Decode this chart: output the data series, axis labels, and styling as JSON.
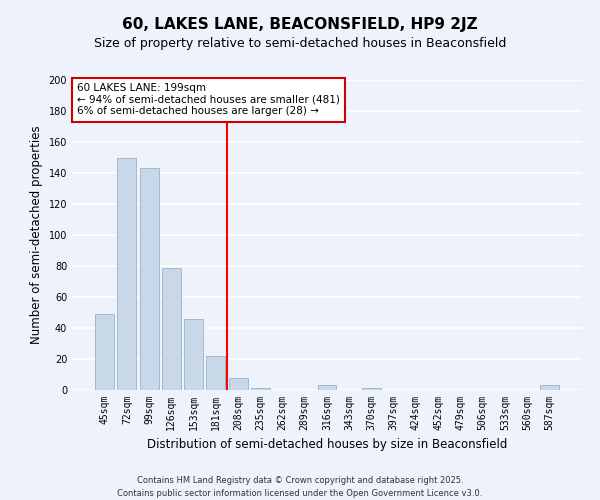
{
  "title": "60, LAKES LANE, BEACONSFIELD, HP9 2JZ",
  "subtitle": "Size of property relative to semi-detached houses in Beaconsfield",
  "xlabel": "Distribution of semi-detached houses by size in Beaconsfield",
  "ylabel": "Number of semi-detached properties",
  "bar_labels": [
    "45sqm",
    "72sqm",
    "99sqm",
    "126sqm",
    "153sqm",
    "181sqm",
    "208sqm",
    "235sqm",
    "262sqm",
    "289sqm",
    "316sqm",
    "343sqm",
    "370sqm",
    "397sqm",
    "424sqm",
    "452sqm",
    "479sqm",
    "506sqm",
    "533sqm",
    "560sqm",
    "587sqm"
  ],
  "bar_values": [
    49,
    150,
    143,
    79,
    46,
    22,
    8,
    1,
    0,
    0,
    3,
    0,
    1,
    0,
    0,
    0,
    0,
    0,
    0,
    0,
    3
  ],
  "bar_color": "#c8d8e8",
  "bar_edge_color": "#a0b8d0",
  "vline_color": "red",
  "vline_pos": 5.5,
  "ylim": [
    0,
    200
  ],
  "yticks": [
    0,
    20,
    40,
    60,
    80,
    100,
    120,
    140,
    160,
    180,
    200
  ],
  "annotation_title": "60 LAKES LANE: 199sqm",
  "annotation_line1": "← 94% of semi-detached houses are smaller (481)",
  "annotation_line2": "6% of semi-detached houses are larger (28) →",
  "footer_line1": "Contains HM Land Registry data © Crown copyright and database right 2025.",
  "footer_line2": "Contains public sector information licensed under the Open Government Licence v3.0.",
  "bg_color": "#eef2fb",
  "grid_color": "white",
  "title_fontsize": 11,
  "subtitle_fontsize": 9,
  "tick_fontsize": 7,
  "ylabel_fontsize": 8.5,
  "xlabel_fontsize": 8.5,
  "footer_fontsize": 6,
  "annot_fontsize": 7.5
}
